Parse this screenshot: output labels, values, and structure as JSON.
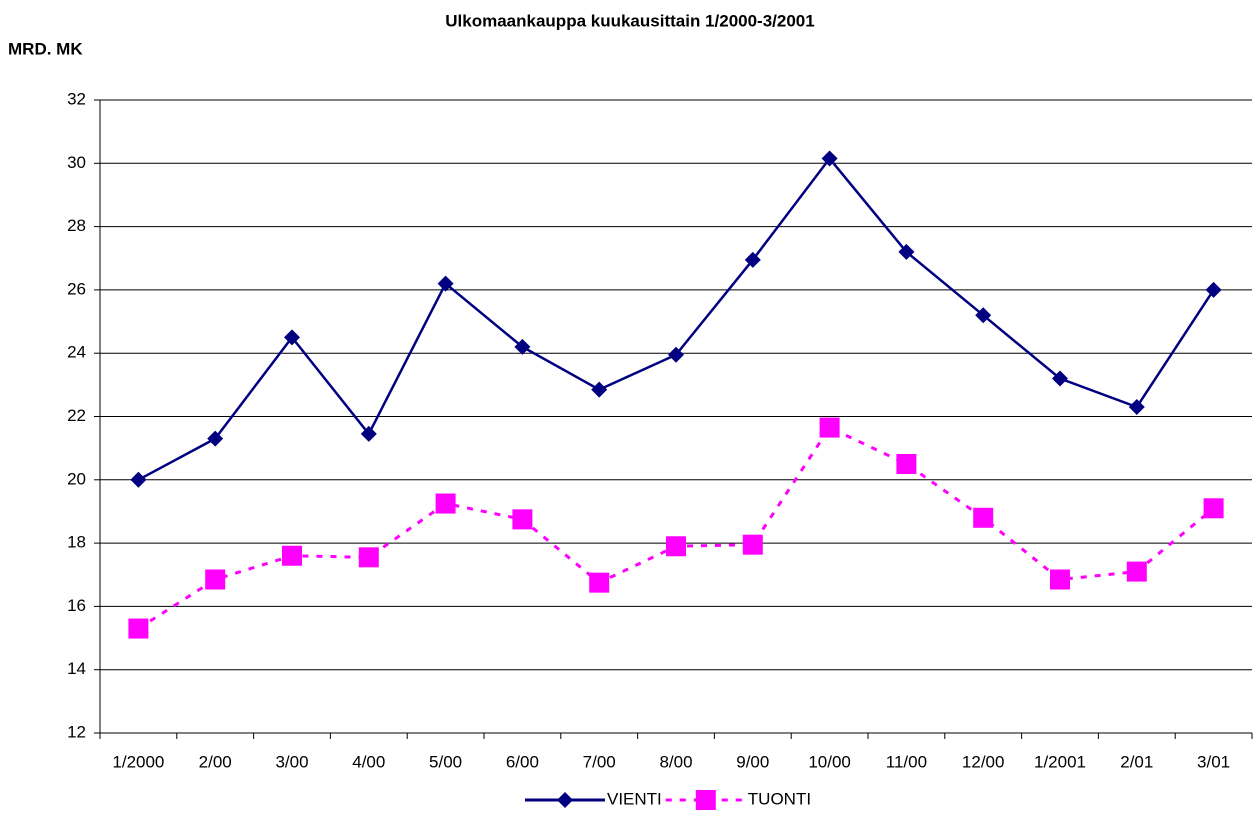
{
  "chart_data": {
    "type": "line",
    "title": "Ulkomaankauppa kuukausittain 1/2000-3/2001",
    "y_label": "MRD. MK",
    "categories": [
      "1/2000",
      "2/00",
      "3/00",
      "4/00",
      "5/00",
      "6/00",
      "7/00",
      "8/00",
      "9/00",
      "10/00",
      "11/00",
      "12/00",
      "1/2001",
      "2/01",
      "3/01"
    ],
    "series": [
      {
        "name": "VIENTI",
        "color": "#000080",
        "marker": "diamond",
        "dash": "solid",
        "values": [
          20.0,
          21.3,
          24.5,
          21.45,
          26.2,
          24.2,
          22.85,
          23.95,
          26.95,
          30.15,
          27.2,
          25.2,
          23.2,
          22.3,
          26.0
        ]
      },
      {
        "name": "TUONTI",
        "color": "#ff00ff",
        "marker": "square",
        "dash": "dotted",
        "values": [
          15.3,
          16.85,
          17.6,
          17.55,
          19.25,
          18.75,
          16.75,
          17.9,
          17.95,
          21.65,
          20.5,
          18.8,
          16.85,
          17.1,
          19.1
        ]
      }
    ],
    "ylim": [
      12,
      32
    ],
    "yticks": [
      12,
      14,
      16,
      18,
      20,
      22,
      24,
      26,
      28,
      30,
      32
    ],
    "grid": true,
    "legend": "bottom"
  }
}
